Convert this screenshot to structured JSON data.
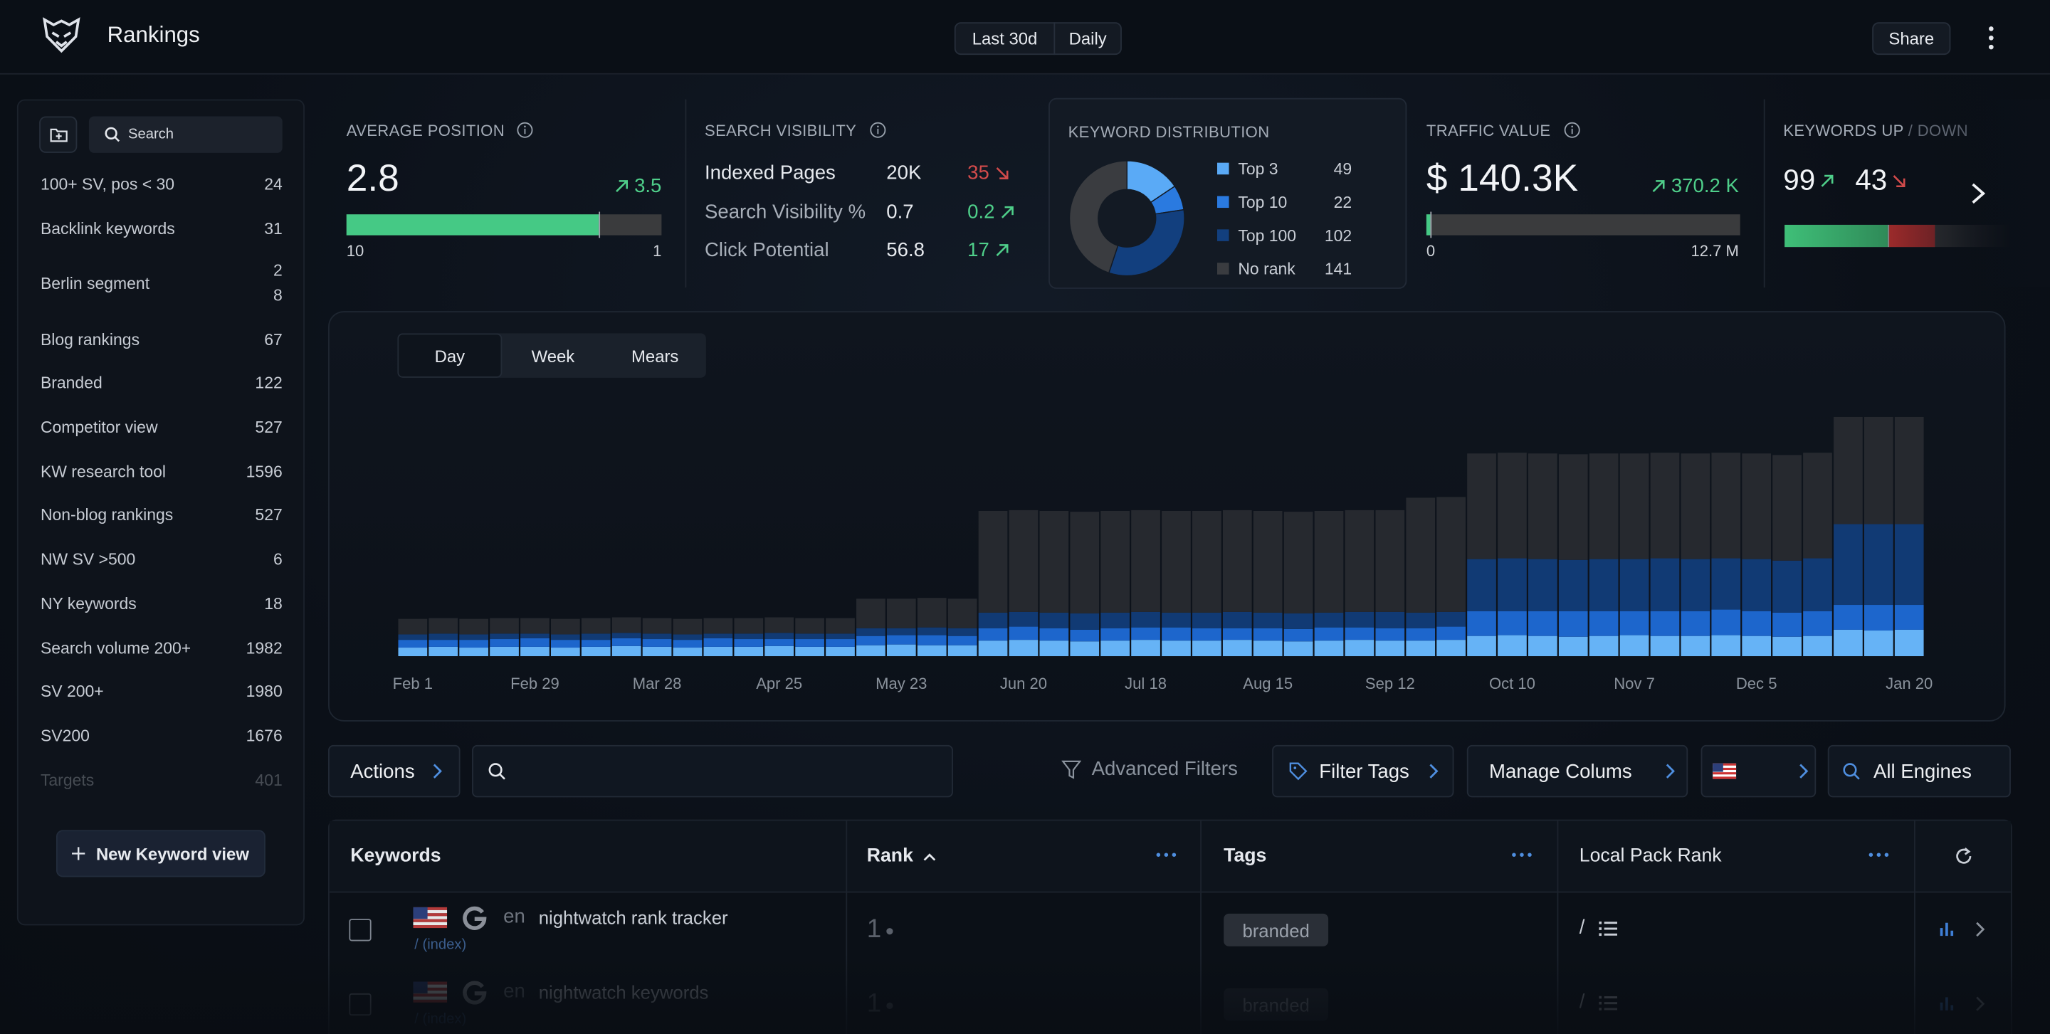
{
  "header": {
    "title": "Rankings",
    "range": "Last 30d",
    "interval": "Daily",
    "share": "Share"
  },
  "sidebar": {
    "search": "Search",
    "views": [
      {
        "name": "100+ SV, pos < 30",
        "count": 24
      },
      {
        "name": "Backlink keywords",
        "count": 31
      },
      {
        "name": "Berlin segment",
        "count": 28
      },
      {
        "name": "Blog rankings",
        "count": 67
      },
      {
        "name": "Branded",
        "count": 122
      },
      {
        "name": "Competitor view",
        "count": 527
      },
      {
        "name": "KW research tool",
        "count": 1596
      },
      {
        "name": "Non-blog rankings",
        "count": 527
      },
      {
        "name": "NW SV >500",
        "count": 6
      },
      {
        "name": "NY keywords",
        "count": 18
      },
      {
        "name": "Search volume 200+",
        "count": 1982
      },
      {
        "name": "SV 200+",
        "count": 1980
      },
      {
        "name": "SV200",
        "count": 1676
      },
      {
        "name": "Targets",
        "count": 401
      }
    ],
    "new_view": "New Keyword view"
  },
  "cards": {
    "average_position": {
      "title": "AVERAGE POSITION",
      "value": 2.8,
      "change": 3.5,
      "trend": "up",
      "scale": [
        10,
        1
      ]
    },
    "search_visibility": {
      "title": "SEARCH VISIBILITY",
      "rows": [
        {
          "label": "Indexed Pages",
          "value": "20K",
          "change": 35,
          "trend": "down"
        },
        {
          "label": "Search Visibility %",
          "value": 0.7,
          "change": 0.2,
          "trend": "up"
        },
        {
          "label": "Click Potential",
          "value": 56.8,
          "change": 17,
          "trend": "up"
        }
      ]
    },
    "traffic_value": {
      "title": "TRAFFIC VALUE",
      "value": {
        "value": 140300,
        "label": "$ 140.3K"
      },
      "change": {
        "value": 370200,
        "label": "370.2 K"
      },
      "trend": "up",
      "scale": [
        0,
        {
          "value": 12700000,
          "label": "12.7 M"
        }
      ]
    },
    "keywords_up_down": {
      "title": "KEYWORDS UP",
      "title_down": "/ DOWN",
      "up": 99,
      "down": 43
    }
  },
  "chart_data": [
    {
      "type": "pie",
      "donut": true,
      "title": "KEYWORD DISTRIBUTION",
      "categories": [
        "Top 3",
        "Top 10",
        "Top 100",
        "No rank"
      ],
      "values": [
        49,
        22,
        102,
        141
      ],
      "colors": [
        "#5aaaf6",
        "#2a7ae0",
        "#123f7e",
        "#3a3c40"
      ]
    },
    {
      "type": "bar",
      "stacked": true,
      "tabs": [
        "Day",
        "Week",
        "Mears"
      ],
      "active_tab": 0,
      "ylim": [
        0,
        340
      ],
      "categories": [
        "Feb 1",
        null,
        null,
        null,
        "Feb 29",
        null,
        null,
        null,
        "Mar 28",
        null,
        null,
        null,
        "Apr 25",
        null,
        null,
        null,
        "May 23",
        null,
        null,
        null,
        "Jun 20",
        null,
        null,
        null,
        "Jul 18",
        null,
        null,
        null,
        "Aug 15",
        null,
        null,
        null,
        "Sep 12",
        null,
        null,
        null,
        "Oct 10",
        null,
        null,
        null,
        "Nov 7",
        null,
        null,
        null,
        "Dec 5",
        null,
        null,
        null,
        null,
        "Jan 20"
      ],
      "series": [
        {
          "name": "Top 3",
          "color": "#66b3f6",
          "values": [
            11,
            12,
            11,
            12,
            12,
            11,
            12,
            13,
            12,
            11,
            12,
            12,
            13,
            12,
            12,
            14,
            15,
            14,
            14,
            20,
            21,
            20,
            19,
            20,
            21,
            20,
            20,
            21,
            20,
            19,
            20,
            21,
            20,
            20,
            21,
            26,
            27,
            26,
            25,
            26,
            27,
            26,
            26,
            27,
            26,
            25,
            26,
            34,
            33,
            34
          ]
        },
        {
          "name": "Top 10",
          "color": "#1d66cc",
          "values": [
            10,
            9,
            10,
            10,
            11,
            10,
            9,
            10,
            10,
            10,
            11,
            10,
            9,
            10,
            10,
            12,
            12,
            13,
            12,
            16,
            17,
            16,
            15,
            16,
            16,
            17,
            16,
            15,
            16,
            16,
            17,
            16,
            16,
            16,
            17,
            32,
            31,
            32,
            33,
            32,
            31,
            32,
            32,
            33,
            32,
            31,
            32,
            32,
            33,
            32
          ]
        },
        {
          "name": "Top 100",
          "color": "#113a74",
          "values": [
            7,
            8,
            7,
            7,
            6,
            7,
            8,
            7,
            7,
            7,
            6,
            7,
            8,
            7,
            7,
            10,
            9,
            10,
            10,
            20,
            19,
            20,
            21,
            20,
            20,
            19,
            20,
            21,
            20,
            20,
            19,
            20,
            21,
            20,
            19,
            67,
            68,
            67,
            66,
            67,
            67,
            68,
            67,
            66,
            67,
            67,
            68,
            104,
            104,
            104
          ]
        },
        {
          "name": "No rank",
          "color": "#26292f",
          "values": [
            20,
            20,
            20,
            20,
            20,
            20,
            20,
            20,
            20,
            20,
            20,
            20,
            20,
            20,
            20,
            38,
            38,
            38,
            38,
            131,
            131,
            131,
            131,
            131,
            131,
            131,
            131,
            131,
            131,
            131,
            131,
            131,
            131,
            148,
            148,
            136,
            136,
            136,
            136,
            136,
            136,
            136,
            136,
            136,
            136,
            136,
            136,
            138,
            138,
            138
          ]
        }
      ]
    }
  ],
  "toolbar": {
    "actions": "Actions",
    "advanced_filters": "Advanced Filters",
    "filter_tags": "Filter Tags",
    "manage_columns": "Manage Colums",
    "engines": "All Engines"
  },
  "table": {
    "columns": [
      "Keywords",
      "Rank",
      "Tags",
      "Local Pack Rank"
    ],
    "rows": [
      {
        "language": "en",
        "keyword": "nightwatch rank tracker",
        "path": "/ (index)",
        "rank": 1,
        "tag": "branded",
        "local_pack": "/"
      },
      {
        "language": "en",
        "keyword": "nightwatch keywords",
        "path": "/ (index)",
        "rank": 1,
        "tag": "branded",
        "local_pack": "/"
      }
    ]
  }
}
